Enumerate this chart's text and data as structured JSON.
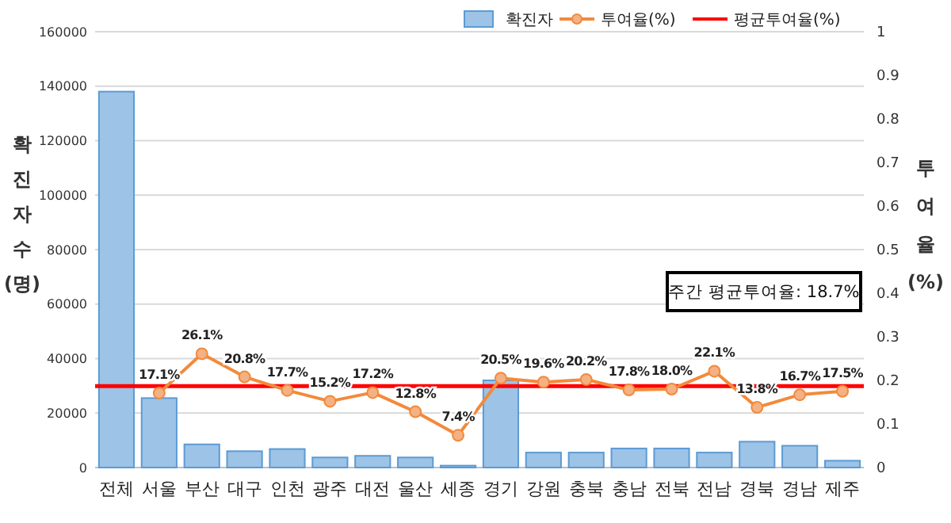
{
  "chart_data": {
    "type": "bar",
    "categories": [
      "전체",
      "서울",
      "부산",
      "대구",
      "인천",
      "광주",
      "대전",
      "울산",
      "세종",
      "경기",
      "강원",
      "충북",
      "충남",
      "전북",
      "전남",
      "경북",
      "경남",
      "제주"
    ],
    "series": [
      {
        "name": "확진자",
        "color": "#9dc3e6",
        "values": [
          138000,
          25500,
          8500,
          6000,
          6800,
          3700,
          4300,
          3700,
          700,
          32000,
          5500,
          5500,
          7000,
          7000,
          5500,
          9500,
          8000,
          2500
        ]
      },
      {
        "name": "투여율(%)",
        "type": "line",
        "axis": "y2",
        "color": "#f28a3c",
        "values": [
          null,
          0.171,
          0.261,
          0.208,
          0.177,
          0.152,
          0.172,
          0.128,
          0.074,
          0.205,
          0.196,
          0.202,
          0.178,
          0.18,
          0.221,
          0.138,
          0.167,
          0.175
        ],
        "value_labels": [
          null,
          "17.1%",
          "26.1%",
          "20.8%",
          "17.7%",
          "15.2%",
          "17.2%",
          "12.8%",
          "7.4%",
          "20.5%",
          "19.6%",
          "20.2%",
          "17.8%",
          "18.0%",
          "22.1%",
          "13.8%",
          "16.7%",
          "17.5%"
        ]
      }
    ],
    "ref_lines": [
      {
        "axis": "y2",
        "value": 0.187,
        "label": "평균투여율(%)",
        "color": "#ff0000"
      }
    ],
    "ylabel": "확진자수(명)",
    "y2label": "투여율(%)",
    "ylim": [
      0,
      160000
    ],
    "yticks": [
      0,
      20000,
      40000,
      60000,
      80000,
      100000,
      120000,
      140000,
      160000
    ],
    "y2lim": [
      0,
      1
    ],
    "y2ticks": [
      0,
      0.1,
      0.2,
      0.3,
      0.4,
      0.5,
      0.6,
      0.7,
      0.8,
      0.9,
      1
    ],
    "annotations": [
      "주간 평균투여율: 18.7%"
    ],
    "grid": "y",
    "legend": "top right",
    "marker": "circle"
  }
}
